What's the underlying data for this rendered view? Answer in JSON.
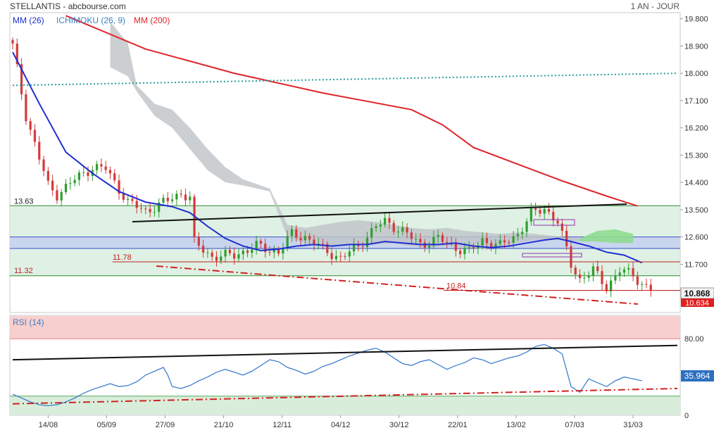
{
  "header": {
    "title": "STELLANTIS - abcbourse.com",
    "period": "1 AN - JOUR"
  },
  "legend": [
    {
      "label": "MM (26)",
      "color": "#1f2fd0"
    },
    {
      "label": "ICHIMOKU (26, 9)",
      "color": "#3a7fc4"
    },
    {
      "label": "MM (200)",
      "color": "#e0242a"
    }
  ],
  "colors": {
    "up": "#2e9e2e",
    "down": "#d33a3a",
    "mm26": "#1f2fd0",
    "mm200": "#e0242a",
    "cloud": "#bfc3c7",
    "cloud_future": "#8fdc8f",
    "dotted": "#2a9c9c",
    "zone_green": "#d6eedd",
    "zone_blue": "#c9d5ee",
    "rsi_line": "#3f7fcf",
    "rsi_over": "#f8cfcf",
    "rsi_under": "#d8eedb"
  },
  "chart_data": [
    {
      "type": "candlestick",
      "price_axis": {
        "min": 10.2,
        "max": 20.0,
        "ticks": [
          "19.800",
          "18.900",
          "18.000",
          "17.100",
          "16.200",
          "15.300",
          "14.400",
          "13.500",
          "12.600",
          "11.700"
        ]
      },
      "x_labels": [
        "14/08",
        "05/09",
        "27/09",
        "21/10",
        "12/11",
        "04/12",
        "30/12",
        "22/01",
        "13/02",
        "07/03",
        "31/03"
      ],
      "current_price": "10.868",
      "low_price": "10.634",
      "levels": [
        {
          "label": "13.63",
          "value": 13.63
        },
        {
          "label": "11.32",
          "value": 11.32
        },
        {
          "label": "11.78",
          "value": 11.78
        },
        {
          "label": "10.84",
          "value": 10.84
        }
      ],
      "dotted_line": {
        "start": 17.6,
        "end": 18.0
      },
      "close_path": [
        [
          0,
          18.9
        ],
        [
          3,
          16.6
        ],
        [
          6,
          15.2
        ],
        [
          8,
          14.3
        ],
        [
          10,
          14.0
        ],
        [
          14,
          14.5
        ],
        [
          18,
          14.9
        ],
        [
          21,
          14.85
        ],
        [
          23,
          14.4
        ],
        [
          26,
          13.75
        ],
        [
          30,
          13.45
        ],
        [
          35,
          13.8
        ],
        [
          38,
          14.05
        ],
        [
          40,
          13.9
        ],
        [
          41,
          12.4
        ],
        [
          45,
          11.95
        ],
        [
          50,
          12.0
        ],
        [
          55,
          12.3
        ],
        [
          60,
          12.1
        ],
        [
          63,
          12.7
        ],
        [
          66,
          12.6
        ],
        [
          70,
          12.2
        ],
        [
          74,
          11.9
        ],
        [
          78,
          12.3
        ],
        [
          82,
          12.95
        ],
        [
          84,
          13.1
        ],
        [
          88,
          12.8
        ],
        [
          92,
          12.35
        ],
        [
          96,
          12.55
        ],
        [
          100,
          12.25
        ],
        [
          103,
          12.1
        ],
        [
          106,
          12.5
        ],
        [
          110,
          12.3
        ],
        [
          114,
          12.7
        ],
        [
          117,
          13.35
        ],
        [
          120,
          13.55
        ],
        [
          123,
          13.1
        ],
        [
          126,
          11.7
        ],
        [
          128,
          11.2
        ],
        [
          131,
          11.5
        ],
        [
          134,
          10.95
        ],
        [
          137,
          11.5
        ],
        [
          140,
          11.35
        ],
        [
          142,
          11.05
        ],
        [
          144,
          10.87
        ]
      ],
      "mm26_path": [
        [
          0,
          18.7
        ],
        [
          6,
          17.0
        ],
        [
          12,
          15.4
        ],
        [
          18,
          14.7
        ],
        [
          24,
          14.1
        ],
        [
          30,
          13.75
        ],
        [
          36,
          13.6
        ],
        [
          40,
          13.4
        ],
        [
          44,
          12.95
        ],
        [
          48,
          12.55
        ],
        [
          52,
          12.3
        ],
        [
          56,
          12.15
        ],
        [
          60,
          12.2
        ],
        [
          64,
          12.3
        ],
        [
          68,
          12.35
        ],
        [
          72,
          12.3
        ],
        [
          76,
          12.35
        ],
        [
          80,
          12.35
        ],
        [
          84,
          12.45
        ],
        [
          88,
          12.4
        ],
        [
          92,
          12.35
        ],
        [
          96,
          12.35
        ],
        [
          100,
          12.4
        ],
        [
          104,
          12.3
        ],
        [
          108,
          12.25
        ],
        [
          112,
          12.3
        ],
        [
          116,
          12.4
        ],
        [
          120,
          12.5
        ],
        [
          123,
          12.55
        ],
        [
          126,
          12.45
        ],
        [
          130,
          12.3
        ],
        [
          134,
          12.1
        ],
        [
          138,
          12.0
        ],
        [
          142,
          11.75
        ]
      ],
      "mm200_path": [
        [
          12,
          19.9
        ],
        [
          30,
          18.8
        ],
        [
          50,
          18.0
        ],
        [
          70,
          17.35
        ],
        [
          90,
          16.8
        ],
        [
          97,
          16.3
        ],
        [
          104,
          15.55
        ],
        [
          114,
          15.0
        ],
        [
          124,
          14.45
        ],
        [
          134,
          13.95
        ],
        [
          141,
          13.62
        ]
      ],
      "cloud_top": [
        [
          22,
          19.7
        ],
        [
          26,
          19.0
        ],
        [
          28,
          17.6
        ],
        [
          32,
          17.0
        ],
        [
          36,
          16.8
        ],
        [
          40,
          16.2
        ],
        [
          44,
          15.5
        ],
        [
          48,
          14.9
        ],
        [
          52,
          14.5
        ],
        [
          58,
          14.2
        ],
        [
          62,
          13.0
        ],
        [
          66,
          12.9
        ],
        [
          70,
          13.0
        ],
        [
          74,
          13.1
        ],
        [
          78,
          13.15
        ],
        [
          82,
          13.1
        ],
        [
          86,
          13.0
        ],
        [
          90,
          12.9
        ],
        [
          94,
          12.85
        ],
        [
          98,
          12.9
        ],
        [
          102,
          12.8
        ],
        [
          106,
          12.75
        ],
        [
          110,
          12.7
        ],
        [
          114,
          12.75
        ],
        [
          118,
          12.7
        ],
        [
          124,
          12.6
        ],
        [
          128,
          12.55
        ]
      ],
      "cloud_bottom": [
        [
          22,
          18.2
        ],
        [
          26,
          17.9
        ],
        [
          28,
          17.4
        ],
        [
          32,
          16.6
        ],
        [
          36,
          16.2
        ],
        [
          40,
          15.5
        ],
        [
          44,
          14.8
        ],
        [
          48,
          14.4
        ],
        [
          52,
          14.3
        ],
        [
          58,
          14.1
        ],
        [
          62,
          12.6
        ],
        [
          66,
          12.4
        ],
        [
          70,
          12.35
        ],
        [
          74,
          12.3
        ],
        [
          78,
          12.35
        ],
        [
          82,
          12.35
        ],
        [
          86,
          12.4
        ],
        [
          90,
          12.3
        ],
        [
          94,
          12.25
        ],
        [
          98,
          12.3
        ],
        [
          102,
          12.25
        ],
        [
          106,
          12.2
        ],
        [
          110,
          12.3
        ],
        [
          114,
          12.4
        ],
        [
          118,
          12.5
        ],
        [
          124,
          12.5
        ],
        [
          128,
          12.45
        ]
      ],
      "future_cloud_top": [
        [
          128,
          12.55
        ],
        [
          132,
          12.8
        ],
        [
          136,
          12.85
        ],
        [
          140,
          12.7
        ]
      ],
      "future_cloud_bottom": [
        [
          128,
          12.45
        ],
        [
          132,
          12.45
        ],
        [
          136,
          12.4
        ],
        [
          140,
          12.4
        ]
      ]
    },
    {
      "type": "line",
      "name": "RSI (14)",
      "y_ticks": [
        "80.00",
        "35.964",
        "0"
      ],
      "current_value": "35.964",
      "overbought": 80,
      "oversold": 20,
      "path": [
        [
          0,
          22
        ],
        [
          2,
          18
        ],
        [
          4,
          14
        ],
        [
          6,
          11
        ],
        [
          8,
          10
        ],
        [
          10,
          11
        ],
        [
          12,
          14
        ],
        [
          14,
          18
        ],
        [
          16,
          23
        ],
        [
          18,
          27
        ],
        [
          20,
          30
        ],
        [
          22,
          33
        ],
        [
          24,
          30
        ],
        [
          26,
          31
        ],
        [
          28,
          35
        ],
        [
          30,
          42
        ],
        [
          32,
          46
        ],
        [
          34,
          50
        ],
        [
          35,
          42
        ],
        [
          36,
          30
        ],
        [
          38,
          28
        ],
        [
          40,
          31
        ],
        [
          42,
          36
        ],
        [
          44,
          40
        ],
        [
          46,
          45
        ],
        [
          48,
          48
        ],
        [
          50,
          45
        ],
        [
          52,
          42
        ],
        [
          54,
          46
        ],
        [
          56,
          52
        ],
        [
          58,
          58
        ],
        [
          60,
          56
        ],
        [
          62,
          50
        ],
        [
          64,
          47
        ],
        [
          66,
          43
        ],
        [
          68,
          46
        ],
        [
          70,
          51
        ],
        [
          72,
          54
        ],
        [
          74,
          58
        ],
        [
          76,
          62
        ],
        [
          78,
          65
        ],
        [
          80,
          68
        ],
        [
          82,
          70
        ],
        [
          84,
          66
        ],
        [
          86,
          60
        ],
        [
          88,
          54
        ],
        [
          90,
          52
        ],
        [
          92,
          56
        ],
        [
          94,
          58
        ],
        [
          96,
          53
        ],
        [
          98,
          48
        ],
        [
          100,
          52
        ],
        [
          102,
          55
        ],
        [
          104,
          60
        ],
        [
          106,
          58
        ],
        [
          108,
          54
        ],
        [
          110,
          57
        ],
        [
          112,
          60
        ],
        [
          114,
          62
        ],
        [
          116,
          66
        ],
        [
          118,
          72
        ],
        [
          120,
          74
        ],
        [
          122,
          70
        ],
        [
          124,
          64
        ],
        [
          126,
          30
        ],
        [
          128,
          24
        ],
        [
          130,
          38
        ],
        [
          132,
          34
        ],
        [
          134,
          30
        ],
        [
          136,
          36
        ],
        [
          138,
          40
        ],
        [
          140,
          38
        ],
        [
          142,
          36
        ]
      ],
      "trend_upper": [
        [
          0,
          58
        ],
        [
          150,
          73
        ]
      ],
      "trend_lower": [
        [
          0,
          12
        ],
        [
          150,
          28
        ]
      ]
    }
  ]
}
